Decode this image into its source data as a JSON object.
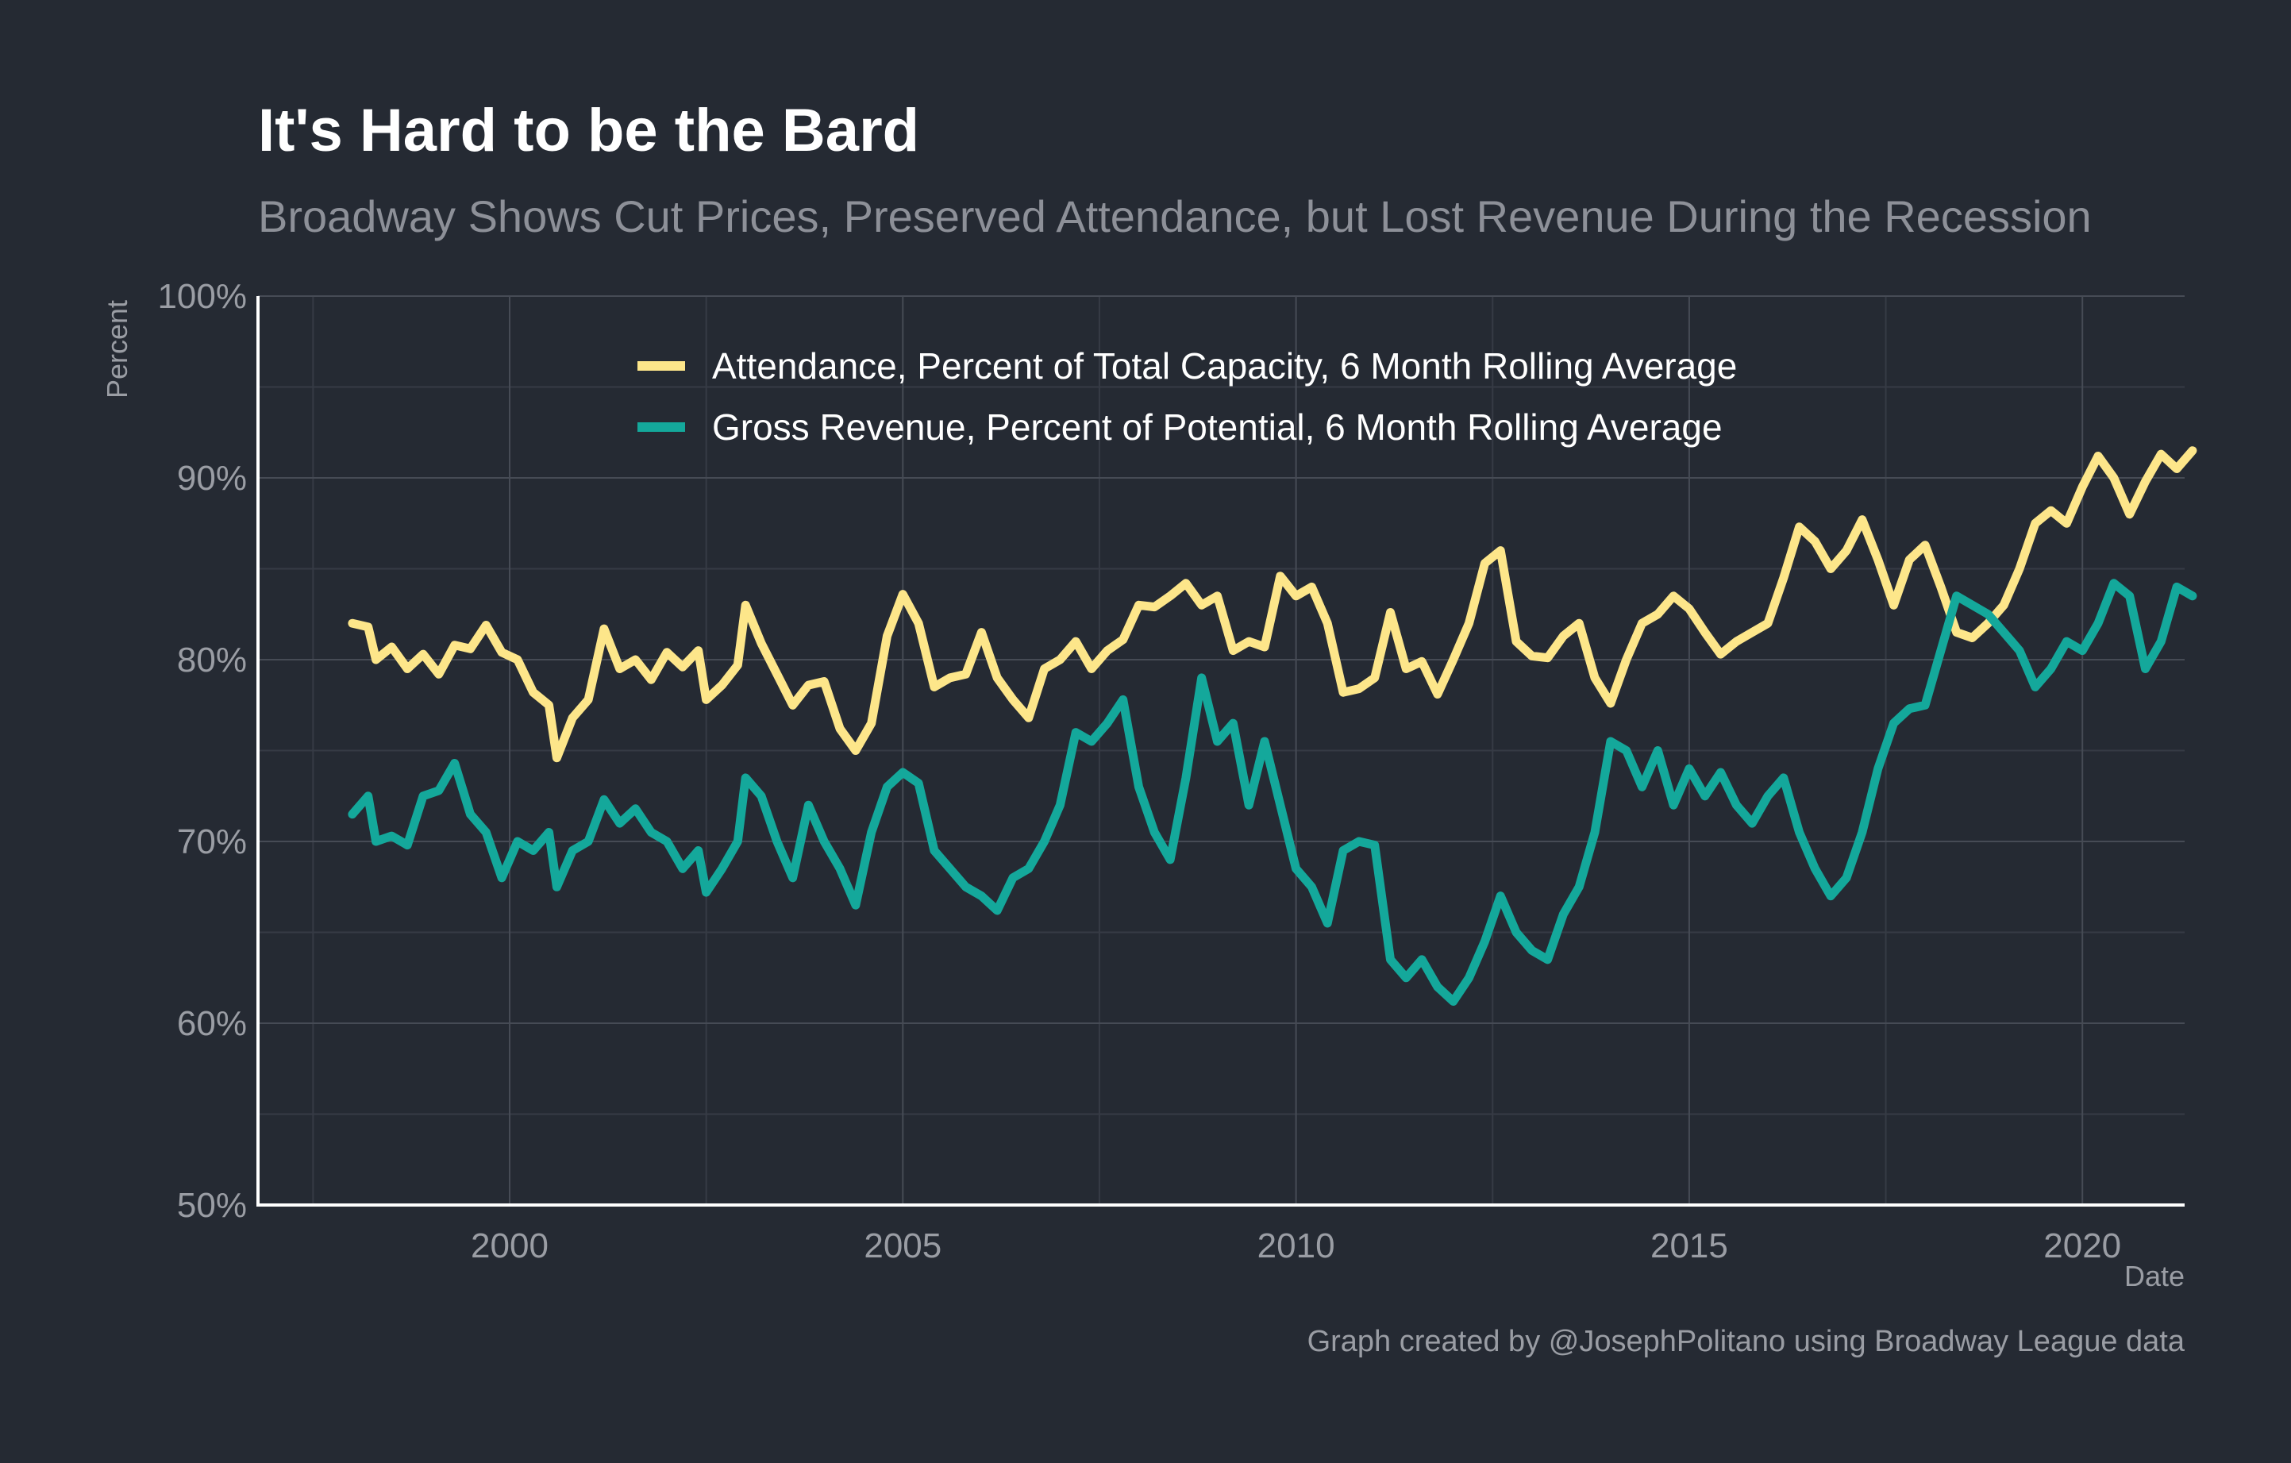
{
  "chart_data": {
    "type": "line",
    "title": "It's Hard to be the Bard",
    "subtitle": "Broadway Shows Cut Prices, Preserved Attendance, but Lost Revenue During the Recession",
    "xlabel": "Date",
    "ylabel": "Percent",
    "caption": "Graph created by @JosephPolitano using Broadway League data",
    "xlim": [
      1996.8,
      2021.3
    ],
    "ylim": [
      50,
      100
    ],
    "x_ticks": [
      2000,
      2005,
      2010,
      2015,
      2020
    ],
    "x_tick_labels": [
      "2000",
      "2005",
      "2010",
      "2015",
      "2020"
    ],
    "y_ticks": [
      50,
      60,
      70,
      80,
      90,
      100
    ],
    "y_tick_labels": [
      "50%",
      "60%",
      "70%",
      "80%",
      "90%",
      "100%"
    ],
    "grid": true,
    "legend_position": "top-center",
    "series": [
      {
        "name": "Attendance, Percent of Total Capacity, 6 Month Rolling Average",
        "color": "#fde68a",
        "points": [
          [
            1998.0,
            82.0
          ],
          [
            1998.2,
            81.8
          ],
          [
            1998.3,
            80.0
          ],
          [
            1998.5,
            80.7
          ],
          [
            1998.7,
            79.5
          ],
          [
            1998.9,
            80.3
          ],
          [
            1999.1,
            79.2
          ],
          [
            1999.3,
            80.8
          ],
          [
            1999.5,
            80.6
          ],
          [
            1999.7,
            81.9
          ],
          [
            1999.9,
            80.4
          ],
          [
            2000.1,
            80.0
          ],
          [
            2000.3,
            78.2
          ],
          [
            2000.5,
            77.5
          ],
          [
            2000.6,
            74.6
          ],
          [
            2000.8,
            76.8
          ],
          [
            2001.0,
            77.8
          ],
          [
            2001.2,
            81.7
          ],
          [
            2001.4,
            79.5
          ],
          [
            2001.6,
            80.0
          ],
          [
            2001.8,
            78.9
          ],
          [
            2002.0,
            80.4
          ],
          [
            2002.2,
            79.6
          ],
          [
            2002.4,
            80.5
          ],
          [
            2002.5,
            77.8
          ],
          [
            2002.7,
            78.6
          ],
          [
            2002.9,
            79.7
          ],
          [
            2003.0,
            83.0
          ],
          [
            2003.2,
            80.9
          ],
          [
            2003.4,
            79.2
          ],
          [
            2003.6,
            77.5
          ],
          [
            2003.8,
            78.6
          ],
          [
            2004.0,
            78.8
          ],
          [
            2004.2,
            76.2
          ],
          [
            2004.4,
            75.0
          ],
          [
            2004.6,
            76.5
          ],
          [
            2004.8,
            81.3
          ],
          [
            2005.0,
            83.6
          ],
          [
            2005.2,
            82.0
          ],
          [
            2005.4,
            78.5
          ],
          [
            2005.6,
            79.0
          ],
          [
            2005.8,
            79.2
          ],
          [
            2006.0,
            81.5
          ],
          [
            2006.2,
            79.0
          ],
          [
            2006.4,
            77.8
          ],
          [
            2006.6,
            76.8
          ],
          [
            2006.8,
            79.5
          ],
          [
            2007.0,
            80.0
          ],
          [
            2007.2,
            81.0
          ],
          [
            2007.4,
            79.5
          ],
          [
            2007.6,
            80.5
          ],
          [
            2007.8,
            81.1
          ],
          [
            2008.0,
            83.0
          ],
          [
            2008.2,
            82.9
          ],
          [
            2008.4,
            83.5
          ],
          [
            2008.6,
            84.2
          ],
          [
            2008.8,
            83.0
          ],
          [
            2009.0,
            83.5
          ],
          [
            2009.2,
            80.5
          ],
          [
            2009.4,
            81.0
          ],
          [
            2009.6,
            80.7
          ],
          [
            2009.8,
            84.6
          ],
          [
            2010.0,
            83.5
          ],
          [
            2010.2,
            84.0
          ],
          [
            2010.4,
            82.0
          ],
          [
            2010.6,
            78.2
          ],
          [
            2010.8,
            78.4
          ],
          [
            2011.0,
            79.0
          ],
          [
            2011.2,
            82.6
          ],
          [
            2011.4,
            79.5
          ],
          [
            2011.6,
            79.9
          ],
          [
            2011.8,
            78.1
          ],
          [
            2012.0,
            80.0
          ],
          [
            2012.2,
            82.0
          ],
          [
            2012.4,
            85.3
          ],
          [
            2012.6,
            86.0
          ],
          [
            2012.8,
            81.0
          ],
          [
            2013.0,
            80.2
          ],
          [
            2013.2,
            80.1
          ],
          [
            2013.4,
            81.3
          ],
          [
            2013.6,
            82.0
          ],
          [
            2013.8,
            79.0
          ],
          [
            2014.0,
            77.6
          ],
          [
            2014.2,
            80.0
          ],
          [
            2014.4,
            82.0
          ],
          [
            2014.6,
            82.5
          ],
          [
            2014.8,
            83.5
          ],
          [
            2015.0,
            82.8
          ],
          [
            2015.2,
            81.5
          ],
          [
            2015.4,
            80.3
          ],
          [
            2015.6,
            81.0
          ],
          [
            2015.8,
            81.5
          ],
          [
            2016.0,
            82.0
          ],
          [
            2016.2,
            84.5
          ],
          [
            2016.4,
            87.3
          ],
          [
            2016.6,
            86.5
          ],
          [
            2016.8,
            85.0
          ],
          [
            2017.0,
            86.0
          ],
          [
            2017.2,
            87.7
          ],
          [
            2017.4,
            85.5
          ],
          [
            2017.6,
            83.0
          ],
          [
            2017.8,
            85.5
          ],
          [
            2018.0,
            86.3
          ],
          [
            2018.2,
            84.0
          ],
          [
            2018.4,
            81.5
          ],
          [
            2018.6,
            81.2
          ],
          [
            2018.8,
            82.0
          ],
          [
            2019.0,
            83.0
          ],
          [
            2019.2,
            85.0
          ],
          [
            2019.4,
            87.5
          ],
          [
            2019.6,
            88.2
          ],
          [
            2019.8,
            87.5
          ],
          [
            2020.0,
            89.5
          ],
          [
            2020.2,
            91.2
          ],
          [
            2020.4,
            90.0
          ],
          [
            2020.6,
            88.0
          ],
          [
            2020.8,
            89.8
          ],
          [
            2021.0,
            91.3
          ],
          [
            2021.2,
            90.5
          ],
          [
            2021.4,
            91.5
          ]
        ]
      },
      {
        "name": "Gross Revenue, Percent of Potential, 6 Month Rolling Average",
        "color": "#14a89b",
        "points": [
          [
            1998.0,
            71.5
          ],
          [
            1998.2,
            72.5
          ],
          [
            1998.3,
            70.0
          ],
          [
            1998.5,
            70.3
          ],
          [
            1998.7,
            69.8
          ],
          [
            1998.9,
            72.5
          ],
          [
            1999.1,
            72.8
          ],
          [
            1999.3,
            74.3
          ],
          [
            1999.5,
            71.5
          ],
          [
            1999.7,
            70.5
          ],
          [
            1999.9,
            68.0
          ],
          [
            2000.1,
            70.0
          ],
          [
            2000.3,
            69.5
          ],
          [
            2000.5,
            70.5
          ],
          [
            2000.6,
            67.5
          ],
          [
            2000.8,
            69.5
          ],
          [
            2001.0,
            70.0
          ],
          [
            2001.2,
            72.3
          ],
          [
            2001.4,
            71.0
          ],
          [
            2001.6,
            71.8
          ],
          [
            2001.8,
            70.5
          ],
          [
            2002.0,
            70.0
          ],
          [
            2002.2,
            68.5
          ],
          [
            2002.4,
            69.5
          ],
          [
            2002.5,
            67.2
          ],
          [
            2002.7,
            68.5
          ],
          [
            2002.9,
            70.0
          ],
          [
            2003.0,
            73.5
          ],
          [
            2003.2,
            72.5
          ],
          [
            2003.4,
            70.0
          ],
          [
            2003.6,
            68.0
          ],
          [
            2003.8,
            72.0
          ],
          [
            2004.0,
            70.0
          ],
          [
            2004.2,
            68.5
          ],
          [
            2004.4,
            66.5
          ],
          [
            2004.6,
            70.5
          ],
          [
            2004.8,
            73.0
          ],
          [
            2005.0,
            73.8
          ],
          [
            2005.2,
            73.2
          ],
          [
            2005.4,
            69.5
          ],
          [
            2005.6,
            68.5
          ],
          [
            2005.8,
            67.5
          ],
          [
            2006.0,
            67.0
          ],
          [
            2006.2,
            66.2
          ],
          [
            2006.4,
            68.0
          ],
          [
            2006.6,
            68.5
          ],
          [
            2006.8,
            70.0
          ],
          [
            2007.0,
            72.0
          ],
          [
            2007.2,
            76.0
          ],
          [
            2007.4,
            75.5
          ],
          [
            2007.6,
            76.5
          ],
          [
            2007.8,
            77.8
          ],
          [
            2008.0,
            73.0
          ],
          [
            2008.2,
            70.5
          ],
          [
            2008.4,
            69.0
          ],
          [
            2008.6,
            73.5
          ],
          [
            2008.8,
            79.0
          ],
          [
            2009.0,
            75.5
          ],
          [
            2009.2,
            76.5
          ],
          [
            2009.4,
            72.0
          ],
          [
            2009.6,
            75.5
          ],
          [
            2009.8,
            72.0
          ],
          [
            2010.0,
            68.5
          ],
          [
            2010.2,
            67.5
          ],
          [
            2010.4,
            65.5
          ],
          [
            2010.6,
            69.5
          ],
          [
            2010.8,
            70.0
          ],
          [
            2011.0,
            69.8
          ],
          [
            2011.2,
            63.5
          ],
          [
            2011.4,
            62.5
          ],
          [
            2011.6,
            63.5
          ],
          [
            2011.8,
            62.0
          ],
          [
            2012.0,
            61.2
          ],
          [
            2012.2,
            62.5
          ],
          [
            2012.4,
            64.5
          ],
          [
            2012.6,
            67.0
          ],
          [
            2012.8,
            65.0
          ],
          [
            2013.0,
            64.0
          ],
          [
            2013.2,
            63.5
          ],
          [
            2013.4,
            66.0
          ],
          [
            2013.6,
            67.5
          ],
          [
            2013.8,
            70.5
          ],
          [
            2014.0,
            75.5
          ],
          [
            2014.2,
            75.0
          ],
          [
            2014.4,
            73.0
          ],
          [
            2014.6,
            75.0
          ],
          [
            2014.8,
            72.0
          ],
          [
            2015.0,
            74.0
          ],
          [
            2015.2,
            72.5
          ],
          [
            2015.4,
            73.8
          ],
          [
            2015.6,
            72.0
          ],
          [
            2015.8,
            71.0
          ],
          [
            2016.0,
            72.5
          ],
          [
            2016.2,
            73.5
          ],
          [
            2016.4,
            70.5
          ],
          [
            2016.6,
            68.5
          ],
          [
            2016.8,
            67.0
          ],
          [
            2017.0,
            68.0
          ],
          [
            2017.2,
            70.5
          ],
          [
            2017.4,
            74.0
          ],
          [
            2017.6,
            76.5
          ],
          [
            2017.8,
            77.3
          ],
          [
            2018.0,
            77.5
          ],
          [
            2018.2,
            80.5
          ],
          [
            2018.4,
            83.5
          ],
          [
            2018.6,
            83.0
          ],
          [
            2018.8,
            82.5
          ],
          [
            2019.0,
            81.5
          ],
          [
            2019.2,
            80.5
          ],
          [
            2019.4,
            78.5
          ],
          [
            2019.6,
            79.5
          ],
          [
            2019.8,
            81.0
          ],
          [
            2020.0,
            80.5
          ],
          [
            2020.2,
            82.0
          ],
          [
            2020.4,
            84.2
          ],
          [
            2020.6,
            83.5
          ],
          [
            2020.8,
            79.5
          ],
          [
            2021.0,
            81.0
          ],
          [
            2021.2,
            84.0
          ],
          [
            2021.4,
            83.5
          ]
        ]
      }
    ]
  }
}
